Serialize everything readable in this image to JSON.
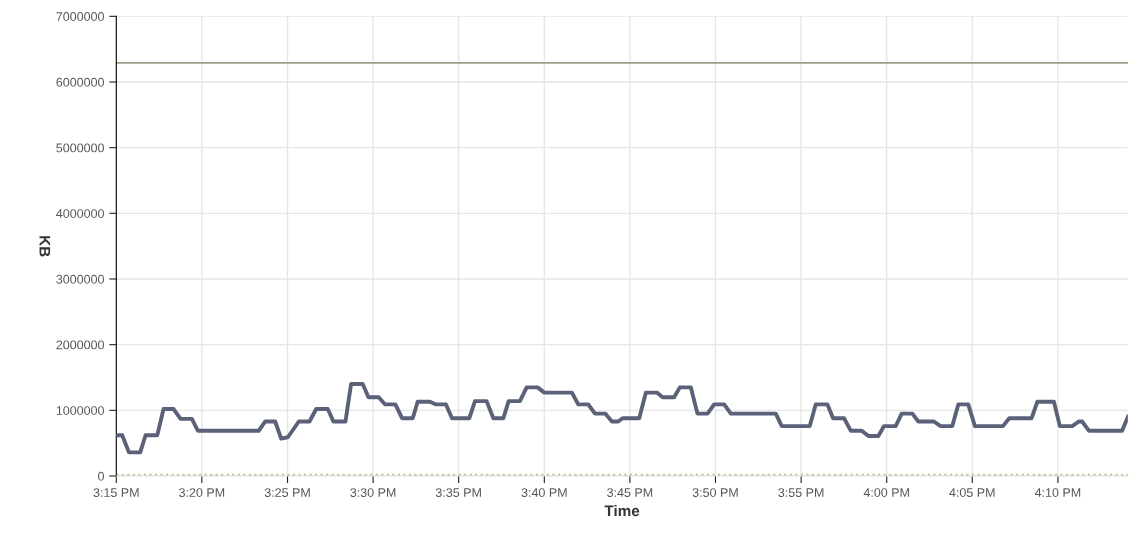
{
  "chart_data": {
    "type": "line",
    "xlabel": "Time",
    "ylabel": "KB",
    "series": [
      {
        "color": "#5a6178",
        "x": [
          15.25,
          15.2558,
          15.2623,
          15.2733,
          15.2785,
          15.2899,
          15.296,
          15.3058,
          15.3126,
          15.3236,
          15.3294,
          15.3888,
          15.3949,
          15.4047,
          15.4105,
          15.417,
          15.4277,
          15.4381,
          15.4446,
          15.4559,
          15.4614,
          15.4731,
          15.4786,
          15.4899,
          15.4955,
          15.5055,
          15.5117,
          15.5217,
          15.5282,
          15.5386,
          15.5434,
          15.5554,
          15.5613,
          15.571,
          15.5768,
          15.5937,
          15.5992,
          15.6105,
          15.6171,
          15.6268,
          15.632,
          15.643,
          15.6495,
          15.6602,
          15.6667,
          15.6936,
          15.6997,
          15.7095,
          15.716,
          15.726,
          15.7325,
          15.7387,
          15.7429,
          15.7591,
          15.7656,
          15.7763,
          15.7818,
          15.7931,
          15.7986,
          15.8093,
          15.8158,
          15.8256,
          15.832,
          15.8418,
          15.8483,
          15.892,
          15.8979,
          15.9251,
          15.9309,
          15.9423,
          15.9478,
          15.9585,
          15.965,
          15.9757,
          15.9822,
          15.9919,
          15.9974,
          16.0088,
          16.0146,
          16.025,
          16.0308,
          16.046,
          16.0525,
          16.0639,
          16.0697,
          16.0794,
          16.0859,
          16.1132,
          16.1193,
          16.1411,
          16.1466,
          16.1628,
          16.1686,
          16.1806,
          16.1871,
          16.1903,
          16.1968,
          16.2292,
          16.2348
        ],
        "values": [
          620000,
          620000,
          360000,
          360000,
          620000,
          620000,
          1020000,
          1020000,
          870000,
          870000,
          690000,
          690000,
          830000,
          830000,
          570000,
          590000,
          830000,
          830000,
          1020000,
          1020000,
          830000,
          830000,
          1400000,
          1400000,
          1200000,
          1200000,
          1090000,
          1090000,
          880000,
          880000,
          1130000,
          1130000,
          1090000,
          1090000,
          880000,
          880000,
          1140000,
          1140000,
          880000,
          880000,
          1140000,
          1140000,
          1350000,
          1350000,
          1270000,
          1270000,
          1090000,
          1090000,
          950000,
          950000,
          830000,
          830000,
          880000,
          880000,
          1270000,
          1270000,
          1200000,
          1200000,
          1350000,
          1350000,
          950000,
          950000,
          1090000,
          1090000,
          950000,
          950000,
          760000,
          760000,
          1090000,
          1090000,
          880000,
          880000,
          690000,
          690000,
          610000,
          610000,
          760000,
          760000,
          950000,
          950000,
          830000,
          830000,
          760000,
          760000,
          1090000,
          1090000,
          760000,
          760000,
          880000,
          880000,
          1130000,
          1130000,
          760000,
          760000,
          830000,
          830000,
          690000,
          690000,
          900000
        ]
      }
    ],
    "ref_lines": [
      {
        "axis": "y",
        "value": 6290000,
        "color": "#a09e88",
        "line_style": "solid"
      },
      {
        "axis": "y",
        "value": 20000,
        "color": "#b5c77a",
        "line_style": "dotted"
      }
    ],
    "xlim": [
      15.25,
      16.2348
    ],
    "ylim": [
      0,
      7000000
    ],
    "xticks": [
      {
        "value": 15.25,
        "label": "3:15 PM"
      },
      {
        "value": 15.3333,
        "label": "3:20 PM"
      },
      {
        "value": 15.4167,
        "label": "3:25 PM"
      },
      {
        "value": 15.5,
        "label": "3:30 PM"
      },
      {
        "value": 15.5833,
        "label": "3:35 PM"
      },
      {
        "value": 15.6667,
        "label": "3:40 PM"
      },
      {
        "value": 15.75,
        "label": "3:45 PM"
      },
      {
        "value": 15.8333,
        "label": "3:50 PM"
      },
      {
        "value": 15.9167,
        "label": "3:55 PM"
      },
      {
        "value": 16.0,
        "label": "4:00 PM"
      },
      {
        "value": 16.0833,
        "label": "4:05 PM"
      },
      {
        "value": 16.1667,
        "label": "4:10 PM"
      }
    ],
    "yticks": [
      0,
      1000000,
      2000000,
      3000000,
      4000000,
      5000000,
      6000000,
      7000000
    ],
    "grid": true,
    "marker": "none",
    "line_style": "solid"
  }
}
